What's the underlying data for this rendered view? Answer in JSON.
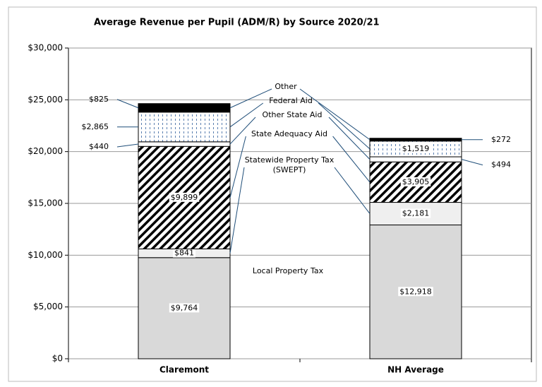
{
  "chart_data": {
    "type": "stacked_bar",
    "title": "Average Revenue per Pupil (ADM/R) by Source 2020/21",
    "categories": [
      "Claremont",
      "NH Average"
    ],
    "series": [
      {
        "name": "Local Property Tax",
        "color": "#d9d9d9",
        "pattern": "solid",
        "values": [
          9764,
          12918
        ],
        "value_labels": [
          "$9,764",
          "$12,918"
        ]
      },
      {
        "name": "Statewide Property Tax (SWEPT)",
        "color": "#efefef",
        "pattern": "solid",
        "values": [
          841,
          2181
        ],
        "value_labels": [
          "$841",
          "$2,181"
        ]
      },
      {
        "name": "State Adequacy Aid",
        "color": "#000000",
        "pattern": "diagonal",
        "values": [
          9899,
          3905
        ],
        "value_labels": [
          "$9,899",
          "$3,905"
        ]
      },
      {
        "name": "Other State Aid",
        "color": "#ffffff",
        "pattern": "solid",
        "values": [
          440,
          494
        ],
        "value_labels": [
          "$440",
          "$494"
        ]
      },
      {
        "name": "Federal Aid",
        "color": "#5a7fb0",
        "pattern": "dots",
        "values": [
          2865,
          1519
        ],
        "value_labels": [
          "$2,865",
          "$1,519"
        ]
      },
      {
        "name": "Other",
        "color": "#000000",
        "pattern": "solid",
        "values": [
          825,
          272
        ],
        "value_labels": [
          "$825",
          "$272"
        ]
      }
    ],
    "ylim": [
      0,
      30000
    ],
    "yticks": [
      {
        "value": 0,
        "label": "$0"
      },
      {
        "value": 5000,
        "label": "$5,000"
      },
      {
        "value": 10000,
        "label": "$10,000"
      },
      {
        "value": 15000,
        "label": "$15,000"
      },
      {
        "value": 20000,
        "label": "$20,000"
      },
      {
        "value": 25000,
        "label": "$25,000"
      },
      {
        "value": 30000,
        "label": "$30,000"
      }
    ],
    "grid": true
  }
}
